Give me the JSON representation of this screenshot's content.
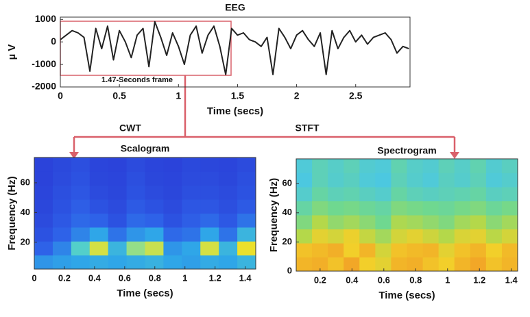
{
  "chart_data": [
    {
      "type": "line",
      "title": "EEG",
      "xlabel": "Time (secs)",
      "ylabel": "µ V",
      "color": "#222222",
      "x": [
        0,
        0.05,
        0.1,
        0.15,
        0.2,
        0.25,
        0.3,
        0.35,
        0.4,
        0.45,
        0.5,
        0.55,
        0.6,
        0.65,
        0.7,
        0.75,
        0.8,
        0.85,
        0.9,
        0.95,
        1,
        1.05,
        1.1,
        1.15,
        1.2,
        1.25,
        1.3,
        1.35,
        1.4,
        1.45,
        1.5,
        1.55,
        1.6,
        1.65,
        1.7,
        1.75,
        1.8,
        1.85,
        1.9,
        1.95,
        2,
        2.05,
        2.1,
        2.15,
        2.2,
        2.25,
        2.3,
        2.35,
        2.4,
        2.45,
        2.5,
        2.55,
        2.6,
        2.65,
        2.7,
        2.75,
        2.8,
        2.85,
        2.9,
        2.95
      ],
      "values": [
        100,
        300,
        500,
        400,
        200,
        -1300,
        600,
        -300,
        700,
        -800,
        500,
        0,
        -700,
        300,
        600,
        -1100,
        900,
        200,
        -600,
        400,
        -200,
        -1000,
        300,
        700,
        -500,
        300,
        700,
        -200,
        -1450,
        600,
        300,
        400,
        100,
        0,
        -200,
        200,
        -1450,
        600,
        200,
        -300,
        300,
        500,
        100,
        -200,
        400,
        -1450,
        500,
        -300,
        200,
        500,
        0,
        300,
        -100,
        200,
        300,
        400,
        100,
        -500,
        -200,
        -300
      ],
      "xlim": [
        0,
        2.96
      ],
      "ylim": [
        -2000,
        1100
      ],
      "xticks": [
        0,
        0.5,
        1,
        1.5,
        2,
        2.5
      ],
      "yticks": [
        -2000,
        -1000,
        0,
        1000
      ]
    },
    {
      "type": "heatmap",
      "title": "Scalogram",
      "xlabel": "Time (secs)",
      "ylabel": "Frequency (Hz)",
      "colormap": [
        "#2a3bd6",
        "#2e62e8",
        "#2fa6e8",
        "#5fdcc0",
        "#c8e050",
        "#f7e020"
      ],
      "xlim": [
        0,
        1.47
      ],
      "ylim": [
        2,
        77
      ],
      "xticks": [
        0,
        0.2,
        0.4,
        0.6,
        0.8,
        1,
        1.2,
        1.4
      ],
      "yticks": [
        20,
        40,
        60
      ],
      "z": [
        [
          0.35,
          0.38,
          0.4,
          0.42,
          0.4,
          0.42,
          0.44,
          0.4,
          0.38,
          0.42,
          0.4,
          0.45
        ],
        [
          0.2,
          0.3,
          0.55,
          0.85,
          0.45,
          0.7,
          0.8,
          0.35,
          0.4,
          0.85,
          0.45,
          0.95
        ],
        [
          0.12,
          0.2,
          0.3,
          0.4,
          0.25,
          0.35,
          0.4,
          0.22,
          0.25,
          0.4,
          0.25,
          0.45
        ],
        [
          0.08,
          0.15,
          0.22,
          0.2,
          0.12,
          0.22,
          0.2,
          0.12,
          0.18,
          0.22,
          0.15,
          0.25
        ],
        [
          0.06,
          0.12,
          0.18,
          0.12,
          0.08,
          0.16,
          0.12,
          0.08,
          0.14,
          0.14,
          0.1,
          0.16
        ],
        [
          0.05,
          0.1,
          0.14,
          0.08,
          0.06,
          0.12,
          0.08,
          0.06,
          0.1,
          0.1,
          0.08,
          0.12
        ],
        [
          0.04,
          0.08,
          0.12,
          0.06,
          0.05,
          0.1,
          0.06,
          0.05,
          0.08,
          0.08,
          0.06,
          0.1
        ],
        [
          0.04,
          0.07,
          0.1,
          0.05,
          0.04,
          0.08,
          0.05,
          0.04,
          0.07,
          0.06,
          0.05,
          0.08
        ]
      ]
    },
    {
      "type": "heatmap",
      "title": "Spectrogram",
      "xlabel": "Time (secs)",
      "ylabel": "Frequency (Hz)",
      "colormap": [
        "#3a9ee8",
        "#4cc8e0",
        "#6fd890",
        "#b4d84a",
        "#f2cf2a",
        "#f29a26"
      ],
      "xlim": [
        0.05,
        1.44
      ],
      "ylim": [
        0,
        77
      ],
      "xticks": [
        0.2,
        0.4,
        0.6,
        0.8,
        1,
        1.2,
        1.4
      ],
      "yticks": [
        0,
        20,
        40,
        60
      ],
      "z": [
        [
          0.9,
          0.92,
          0.85,
          0.95,
          0.8,
          0.75,
          0.9,
          0.92,
          0.85,
          0.8,
          0.9,
          0.95,
          0.85,
          0.9
        ],
        [
          0.85,
          0.88,
          0.92,
          0.8,
          0.9,
          0.7,
          0.85,
          0.88,
          0.9,
          0.75,
          0.85,
          0.9,
          0.8,
          0.88
        ],
        [
          0.6,
          0.75,
          0.7,
          0.78,
          0.65,
          0.55,
          0.7,
          0.75,
          0.68,
          0.6,
          0.72,
          0.75,
          0.62,
          0.7
        ],
        [
          0.45,
          0.6,
          0.5,
          0.55,
          0.48,
          0.4,
          0.58,
          0.55,
          0.5,
          0.45,
          0.55,
          0.6,
          0.48,
          0.55
        ],
        [
          0.35,
          0.45,
          0.4,
          0.42,
          0.38,
          0.35,
          0.45,
          0.42,
          0.4,
          0.38,
          0.42,
          0.45,
          0.38,
          0.42
        ],
        [
          0.25,
          0.35,
          0.3,
          0.32,
          0.28,
          0.25,
          0.35,
          0.3,
          0.28,
          0.3,
          0.32,
          0.35,
          0.28,
          0.3
        ],
        [
          0.2,
          0.3,
          0.25,
          0.28,
          0.22,
          0.2,
          0.3,
          0.25,
          0.22,
          0.28,
          0.25,
          0.3,
          0.22,
          0.25
        ],
        [
          0.22,
          0.3,
          0.26,
          0.3,
          0.24,
          0.22,
          0.32,
          0.26,
          0.24,
          0.3,
          0.26,
          0.32,
          0.24,
          0.28
        ]
      ]
    }
  ],
  "annotations": {
    "frame": "1.47-Seconds frame",
    "left_arrow": "CWT",
    "right_arrow": "STFT"
  }
}
